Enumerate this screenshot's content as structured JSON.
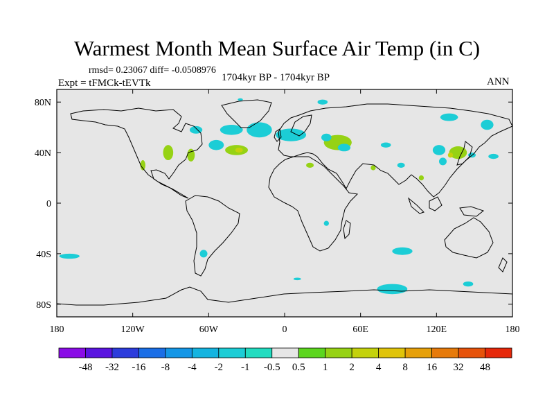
{
  "chart_data": {
    "type": "heatmap",
    "title": "Warmest Month Mean Surface Air Temp (in C)",
    "stats": "rmsd= 0.23067 diff= -0.0508976",
    "experiment": "Expt = tFMCk-tEVTk",
    "period": "1704kyr BP - 1704kyr BP",
    "season": "ANN",
    "x_ticks": [
      {
        "value": -180,
        "label": "180"
      },
      {
        "value": -120,
        "label": "120W"
      },
      {
        "value": -60,
        "label": "60W"
      },
      {
        "value": 0,
        "label": "0"
      },
      {
        "value": 60,
        "label": "60E"
      },
      {
        "value": 120,
        "label": "120E"
      },
      {
        "value": 180,
        "label": "180"
      }
    ],
    "y_ticks": [
      {
        "value": 80,
        "label": "80N"
      },
      {
        "value": 40,
        "label": "40N"
      },
      {
        "value": 0,
        "label": "0"
      },
      {
        "value": -40,
        "label": "40S"
      },
      {
        "value": -80,
        "label": "80S"
      }
    ],
    "xlim": [
      -180,
      180
    ],
    "ylim": [
      -90,
      90
    ],
    "colorbar": {
      "colors": [
        "#8a0ce6",
        "#5a14e0",
        "#2c3cdc",
        "#1a6ee6",
        "#1496e6",
        "#14b4e0",
        "#1ccdd6",
        "#22dcc0",
        "#e6e6e6",
        "#5cd61e",
        "#96d214",
        "#c4d20c",
        "#e0c40a",
        "#e6a00a",
        "#e67a0a",
        "#e6520a",
        "#e6280a"
      ],
      "labels": [
        "-48",
        "-32",
        "-16",
        "-8",
        "-4",
        "-2",
        "-1",
        "-0.5",
        "0.5",
        "1",
        "2",
        "4",
        "8",
        "16",
        "32",
        "48"
      ]
    },
    "anomaly_regions": [
      {
        "lon": -70,
        "lat": 58,
        "rx": 5,
        "ry": 3,
        "level": "-1"
      },
      {
        "lon": -42,
        "lat": 58,
        "rx": 9,
        "ry": 4,
        "level": "-1"
      },
      {
        "lon": -20,
        "lat": 58,
        "rx": 10,
        "ry": 6,
        "level": "-1"
      },
      {
        "lon": 5,
        "lat": 54,
        "rx": 12,
        "ry": 5,
        "level": "-1"
      },
      {
        "lon": -54,
        "lat": 46,
        "rx": 6,
        "ry": 4,
        "level": "-1"
      },
      {
        "lon": -38,
        "lat": 42,
        "rx": 9,
        "ry": 4,
        "level": "1"
      },
      {
        "lon": -36,
        "lat": 42,
        "rx": 3,
        "ry": 2,
        "level": "2"
      },
      {
        "lon": -92,
        "lat": 40,
        "rx": 4,
        "ry": 6,
        "level": "1"
      },
      {
        "lon": -74,
        "lat": 38,
        "rx": 3,
        "ry": 5,
        "level": "1"
      },
      {
        "lon": -112,
        "lat": 30,
        "rx": 2,
        "ry": 4,
        "level": "1"
      },
      {
        "lon": 42,
        "lat": 48,
        "rx": 11,
        "ry": 6,
        "level": "1"
      },
      {
        "lon": 33,
        "lat": 52,
        "rx": 4,
        "ry": 3,
        "level": "-1"
      },
      {
        "lon": 47,
        "lat": 44,
        "rx": 5,
        "ry": 3,
        "level": "-1"
      },
      {
        "lon": 80,
        "lat": 46,
        "rx": 4,
        "ry": 2,
        "level": "-1"
      },
      {
        "lon": 130,
        "lat": 68,
        "rx": 7,
        "ry": 3,
        "level": "-1"
      },
      {
        "lon": 160,
        "lat": 62,
        "rx": 5,
        "ry": 4,
        "level": "-1"
      },
      {
        "lon": 122,
        "lat": 42,
        "rx": 5,
        "ry": 4,
        "level": "-1"
      },
      {
        "lon": 137,
        "lat": 40,
        "rx": 7,
        "ry": 5,
        "level": "1"
      },
      {
        "lon": 131,
        "lat": 38,
        "rx": 2,
        "ry": 2,
        "level": "2"
      },
      {
        "lon": 125,
        "lat": 33,
        "rx": 3,
        "ry": 3,
        "level": "-1"
      },
      {
        "lon": 148,
        "lat": 38,
        "rx": 3,
        "ry": 2,
        "level": "-1"
      },
      {
        "lon": 165,
        "lat": 37,
        "rx": 4,
        "ry": 2,
        "level": "-1"
      },
      {
        "lon": 92,
        "lat": 30,
        "rx": 3,
        "ry": 2,
        "level": "-1"
      },
      {
        "lon": 70,
        "lat": 28,
        "rx": 2,
        "ry": 2,
        "level": "1"
      },
      {
        "lon": 108,
        "lat": 20,
        "rx": 2,
        "ry": 2,
        "level": "1"
      },
      {
        "lon": -170,
        "lat": -42,
        "rx": 8,
        "ry": 2,
        "level": "-1"
      },
      {
        "lon": -64,
        "lat": -40,
        "rx": 3,
        "ry": 3,
        "level": "-1"
      },
      {
        "lon": 93,
        "lat": -38,
        "rx": 8,
        "ry": 3,
        "level": "-1"
      },
      {
        "lon": 85,
        "lat": -68,
        "rx": 12,
        "ry": 4,
        "level": "-1"
      },
      {
        "lon": 10,
        "lat": -60,
        "rx": 3,
        "ry": 1,
        "level": "-1"
      },
      {
        "lon": 145,
        "lat": -64,
        "rx": 4,
        "ry": 2,
        "level": "-1"
      },
      {
        "lon": 33,
        "lat": -16,
        "rx": 2,
        "ry": 2,
        "level": "-1"
      },
      {
        "lon": 30,
        "lat": 80,
        "rx": 4,
        "ry": 2,
        "level": "-1"
      },
      {
        "lon": -35,
        "lat": 82,
        "rx": 2,
        "ry": 1,
        "level": "-1"
      },
      {
        "lon": 20,
        "lat": 30,
        "rx": 3,
        "ry": 2,
        "level": "1"
      }
    ]
  }
}
